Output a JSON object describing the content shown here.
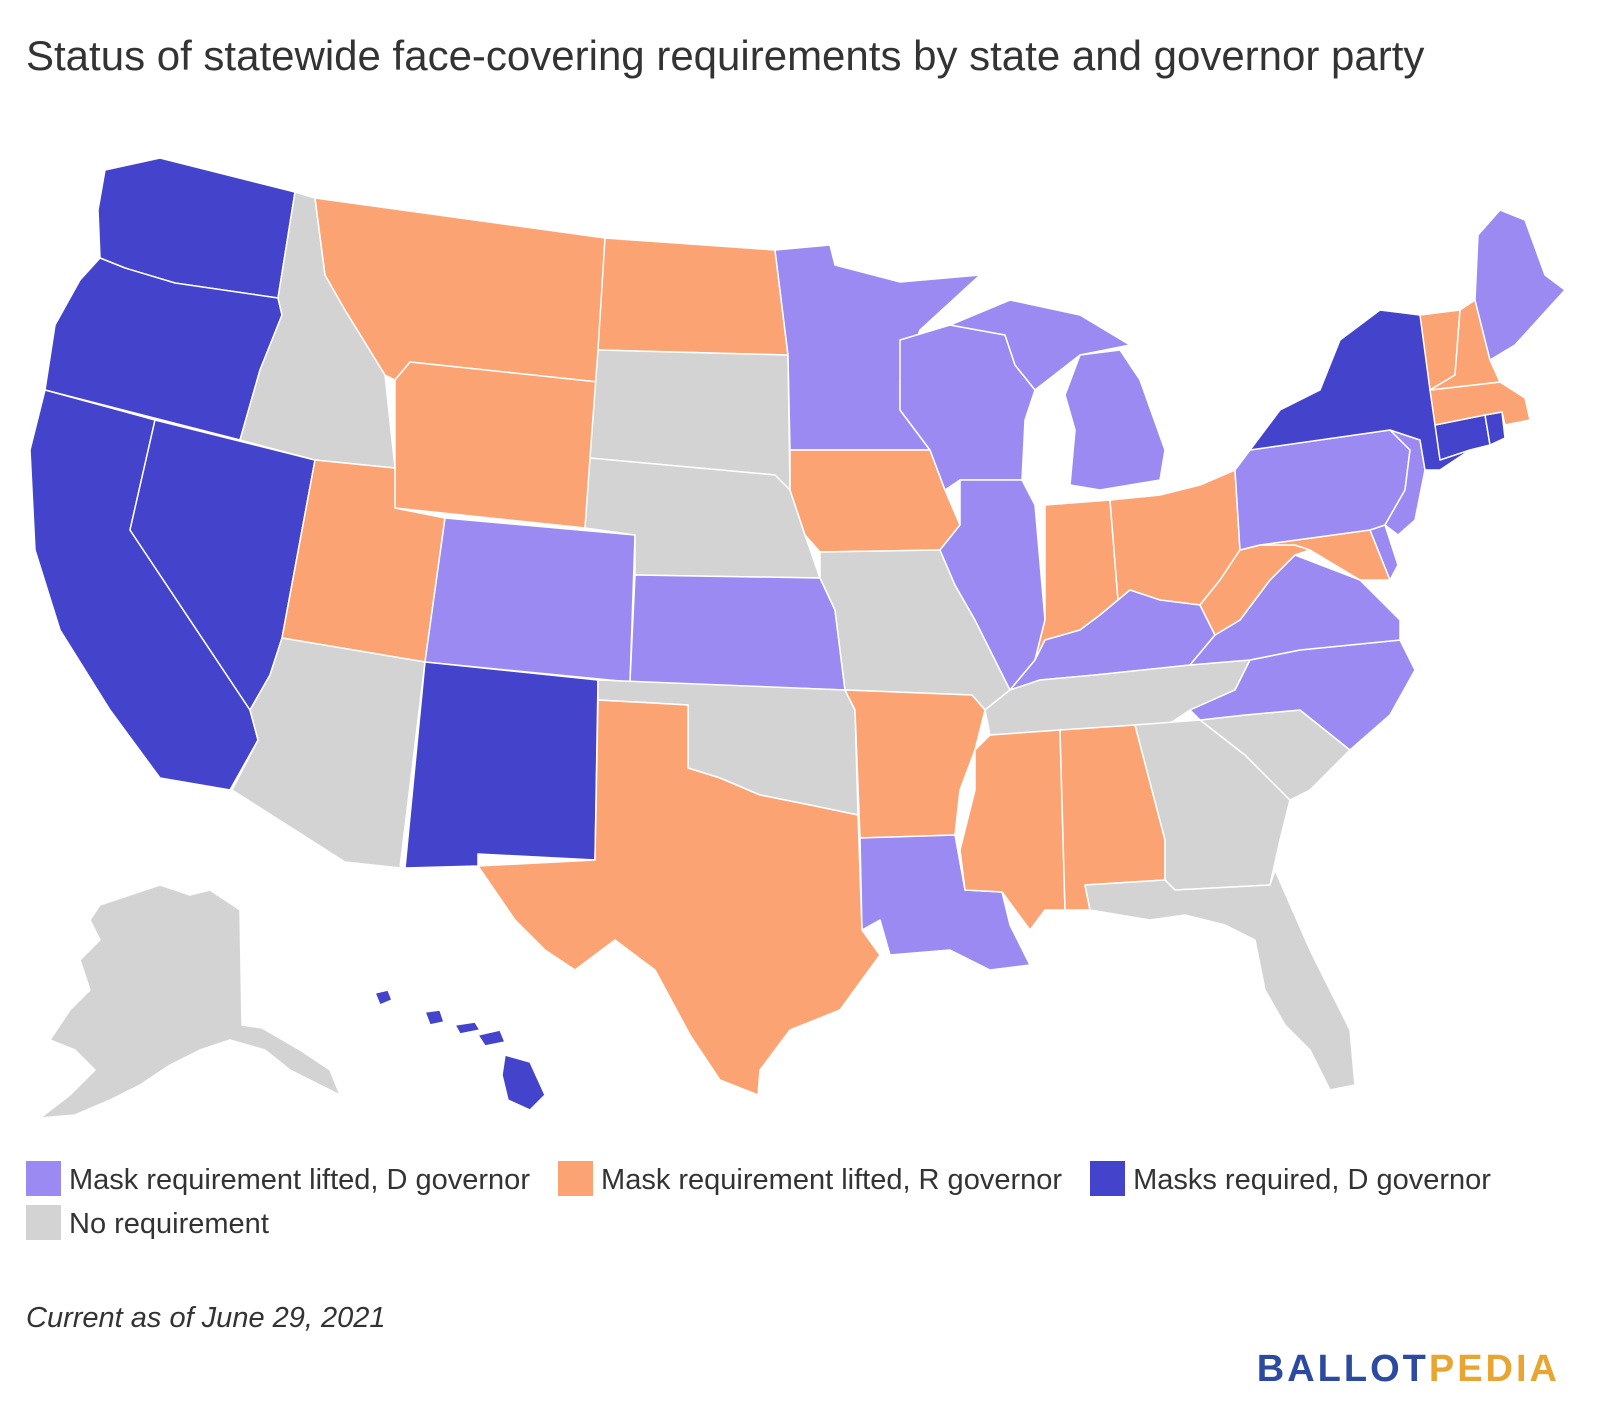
{
  "title": "Status of statewide face-covering requirements by state and governor party",
  "legend": {
    "items": [
      {
        "label": "Mask requirement lifted, D governor",
        "color": "#9b8af2"
      },
      {
        "label": "Mask requirement lifted, R governor",
        "color": "#fca374"
      },
      {
        "label": "Masks required, D governor",
        "color": "#4343cc"
      },
      {
        "label": "No requirement",
        "color": "#d3d3d3"
      }
    ]
  },
  "note": "Current as of June 29, 2021",
  "logo": {
    "part1": "BALLOT",
    "part2": "PEDIA"
  },
  "colors": {
    "lifted_d": "#9b8af2",
    "lifted_r": "#fca374",
    "required_d": "#4343cc",
    "none": "#d3d3d3"
  },
  "map_data": {
    "type": "choropleth",
    "states": [
      {
        "state": "Washington",
        "status": "required_d"
      },
      {
        "state": "Oregon",
        "status": "required_d"
      },
      {
        "state": "California",
        "status": "required_d"
      },
      {
        "state": "Nevada",
        "status": "required_d"
      },
      {
        "state": "Idaho",
        "status": "none"
      },
      {
        "state": "Montana",
        "status": "lifted_r"
      },
      {
        "state": "Wyoming",
        "status": "lifted_r"
      },
      {
        "state": "Utah",
        "status": "lifted_r"
      },
      {
        "state": "Arizona",
        "status": "none"
      },
      {
        "state": "Colorado",
        "status": "lifted_d"
      },
      {
        "state": "New Mexico",
        "status": "required_d"
      },
      {
        "state": "North Dakota",
        "status": "lifted_r"
      },
      {
        "state": "South Dakota",
        "status": "none"
      },
      {
        "state": "Nebraska",
        "status": "none"
      },
      {
        "state": "Kansas",
        "status": "lifted_d"
      },
      {
        "state": "Oklahoma",
        "status": "none"
      },
      {
        "state": "Texas",
        "status": "lifted_r"
      },
      {
        "state": "Minnesota",
        "status": "lifted_d"
      },
      {
        "state": "Iowa",
        "status": "lifted_r"
      },
      {
        "state": "Missouri",
        "status": "none"
      },
      {
        "state": "Arkansas",
        "status": "lifted_r"
      },
      {
        "state": "Louisiana",
        "status": "lifted_d"
      },
      {
        "state": "Wisconsin",
        "status": "lifted_d"
      },
      {
        "state": "Illinois",
        "status": "lifted_d"
      },
      {
        "state": "Michigan",
        "status": "lifted_d"
      },
      {
        "state": "Indiana",
        "status": "lifted_r"
      },
      {
        "state": "Ohio",
        "status": "lifted_r"
      },
      {
        "state": "Kentucky",
        "status": "lifted_d"
      },
      {
        "state": "Tennessee",
        "status": "none"
      },
      {
        "state": "Mississippi",
        "status": "lifted_r"
      },
      {
        "state": "Alabama",
        "status": "lifted_r"
      },
      {
        "state": "Georgia",
        "status": "none"
      },
      {
        "state": "Florida",
        "status": "none"
      },
      {
        "state": "South Carolina",
        "status": "none"
      },
      {
        "state": "North Carolina",
        "status": "lifted_d"
      },
      {
        "state": "Virginia",
        "status": "lifted_d"
      },
      {
        "state": "West Virginia",
        "status": "lifted_r"
      },
      {
        "state": "Maryland",
        "status": "lifted_r"
      },
      {
        "state": "Delaware",
        "status": "lifted_d"
      },
      {
        "state": "Pennsylvania",
        "status": "lifted_d"
      },
      {
        "state": "New Jersey",
        "status": "lifted_d"
      },
      {
        "state": "New York",
        "status": "required_d"
      },
      {
        "state": "Connecticut",
        "status": "required_d"
      },
      {
        "state": "Rhode Island",
        "status": "required_d"
      },
      {
        "state": "Massachusetts",
        "status": "lifted_r"
      },
      {
        "state": "Vermont",
        "status": "lifted_r"
      },
      {
        "state": "New Hampshire",
        "status": "lifted_r"
      },
      {
        "state": "Maine",
        "status": "lifted_d"
      },
      {
        "state": "Alaska",
        "status": "none"
      },
      {
        "state": "Hawaii",
        "status": "required_d"
      }
    ]
  }
}
